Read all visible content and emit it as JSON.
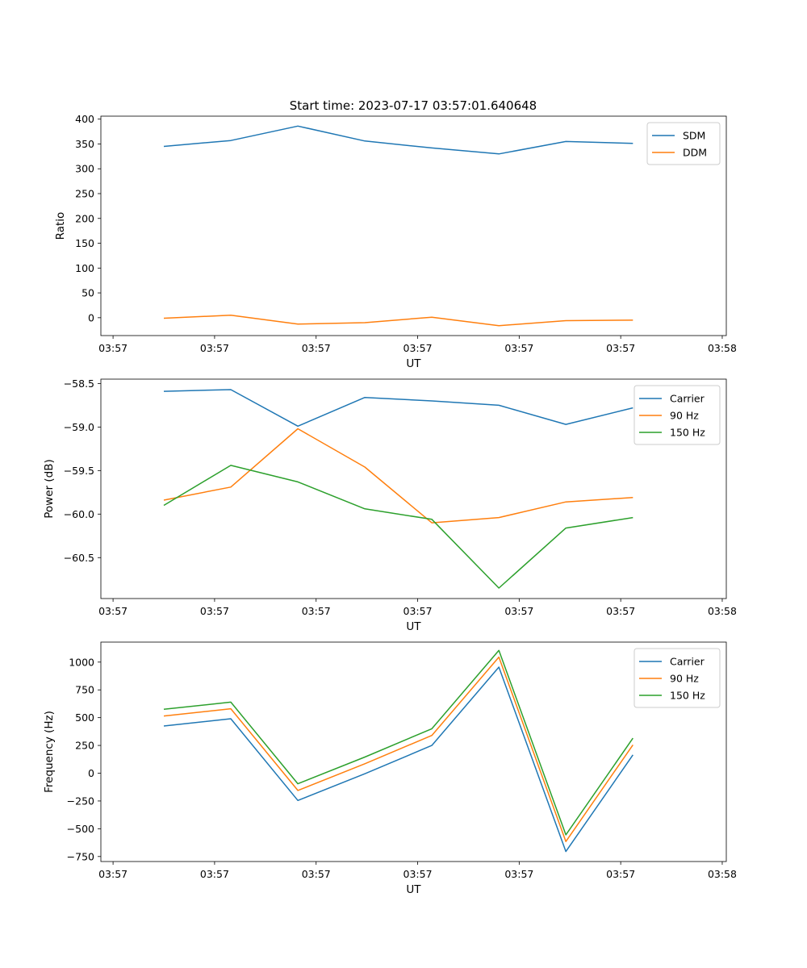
{
  "title": "Start time: 2023-07-17 03:57:01.640648",
  "colors": {
    "blue": "#1f77b4",
    "orange": "#ff7f0e",
    "green": "#2ca02c"
  },
  "chart_data": [
    {
      "type": "line",
      "xlabel": "UT",
      "ylabel": "Ratio",
      "x": [
        0.5,
        1.16,
        1.82,
        2.48,
        3.14,
        3.8,
        4.46,
        5.12
      ],
      "xlim": [
        -0.12,
        6.04
      ],
      "xticks": [
        0,
        1,
        2,
        3,
        4,
        5,
        6
      ],
      "xticklabels": [
        "03:57",
        "03:57",
        "03:57",
        "03:57",
        "03:57",
        "03:57",
        "03:58"
      ],
      "ylim": [
        -36,
        406
      ],
      "yticks": [
        0,
        50,
        100,
        150,
        200,
        250,
        300,
        350,
        400
      ],
      "yticklabels": [
        "0",
        "50",
        "100",
        "150",
        "200",
        "250",
        "300",
        "350",
        "400"
      ],
      "legend": "top-right",
      "series": [
        {
          "name": "SDM",
          "color": "#1f77b4",
          "values": [
            345,
            357,
            386,
            356,
            342,
            330,
            355,
            351
          ]
        },
        {
          "name": "DDM",
          "color": "#ff7f0e",
          "values": [
            -1,
            5,
            -13,
            -10,
            1,
            -16,
            -6,
            -5
          ]
        }
      ]
    },
    {
      "type": "line",
      "xlabel": "UT",
      "ylabel": "Power (dB)",
      "x": [
        0.5,
        1.16,
        1.82,
        2.48,
        3.14,
        3.8,
        4.46,
        5.12
      ],
      "xlim": [
        -0.12,
        6.04
      ],
      "xticks": [
        0,
        1,
        2,
        3,
        4,
        5,
        6
      ],
      "xticklabels": [
        "03:57",
        "03:57",
        "03:57",
        "03:57",
        "03:57",
        "03:57",
        "03:58"
      ],
      "ylim": [
        -60.97,
        -58.45
      ],
      "yticks": [
        -60.5,
        -60.0,
        -59.5,
        -59.0,
        -58.5
      ],
      "yticklabels": [
        "−60.5",
        "−60.0",
        "−59.5",
        "−59.0",
        "−58.5"
      ],
      "legend": "top-right",
      "series": [
        {
          "name": "Carrier",
          "color": "#1f77b4",
          "values": [
            -58.59,
            -58.57,
            -58.99,
            -58.66,
            -58.7,
            -58.75,
            -58.97,
            -58.78
          ]
        },
        {
          "name": "90 Hz",
          "color": "#ff7f0e",
          "values": [
            -59.84,
            -59.69,
            -59.02,
            -59.46,
            -60.1,
            -60.04,
            -59.86,
            -59.81
          ]
        },
        {
          "name": "150 Hz",
          "color": "#2ca02c",
          "values": [
            -59.9,
            -59.44,
            -59.63,
            -59.94,
            -60.06,
            -60.85,
            -60.16,
            -60.04
          ]
        }
      ]
    },
    {
      "type": "line",
      "xlabel": "UT",
      "ylabel": "Frequency (Hz)",
      "x": [
        0.5,
        1.16,
        1.82,
        2.48,
        3.14,
        3.8,
        4.46,
        5.12
      ],
      "xlim": [
        -0.12,
        6.04
      ],
      "xticks": [
        0,
        1,
        2,
        3,
        4,
        5,
        6
      ],
      "xticklabels": [
        "03:57",
        "03:57",
        "03:57",
        "03:57",
        "03:57",
        "03:57",
        "03:58"
      ],
      "ylim": [
        -795,
        1180
      ],
      "yticks": [
        -750,
        -500,
        -250,
        0,
        250,
        500,
        750,
        1000
      ],
      "yticklabels": [
        "−750",
        "−500",
        "−250",
        "0",
        "250",
        "500",
        "750",
        "1000"
      ],
      "legend": "top-right",
      "series": [
        {
          "name": "Carrier",
          "color": "#1f77b4",
          "values": [
            425,
            490,
            -245,
            -5,
            250,
            955,
            -705,
            165
          ]
        },
        {
          "name": "90 Hz",
          "color": "#ff7f0e",
          "values": [
            515,
            580,
            -155,
            85,
            340,
            1045,
            -615,
            255
          ]
        },
        {
          "name": "150 Hz",
          "color": "#2ca02c",
          "values": [
            575,
            640,
            -95,
            145,
            400,
            1105,
            -555,
            315
          ]
        }
      ]
    }
  ]
}
